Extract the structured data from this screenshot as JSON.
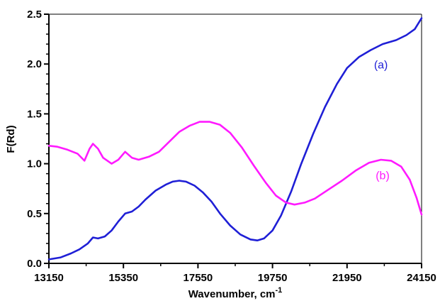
{
  "chart_data": {
    "type": "line",
    "xlabel": "Wavenumber, cm",
    "xlabel_superscript": "-1",
    "ylabel": "F(Rd)",
    "xlim": [
      13150,
      24150
    ],
    "ylim": [
      0.0,
      2.5
    ],
    "x_ticks": [
      13150,
      15350,
      17550,
      19750,
      21950,
      24150
    ],
    "x_tick_labels": [
      "13150",
      "15350",
      "17550",
      "19750",
      "21950",
      "24150"
    ],
    "y_ticks": [
      0.0,
      0.5,
      1.0,
      1.5,
      2.0,
      2.5
    ],
    "y_tick_labels": [
      "0.0",
      "0.5",
      "1.0",
      "1.5",
      "2.0",
      "2.5"
    ],
    "grid": false,
    "series": [
      {
        "name": "(a)",
        "color": "#1f1fd6",
        "label_pos": [
          22950,
          1.99
        ],
        "points": [
          [
            13150,
            0.04
          ],
          [
            13500,
            0.06
          ],
          [
            13800,
            0.1
          ],
          [
            14050,
            0.14
          ],
          [
            14300,
            0.2
          ],
          [
            14450,
            0.26
          ],
          [
            14600,
            0.25
          ],
          [
            14800,
            0.27
          ],
          [
            15000,
            0.33
          ],
          [
            15200,
            0.42
          ],
          [
            15400,
            0.5
          ],
          [
            15600,
            0.52
          ],
          [
            15800,
            0.57
          ],
          [
            16000,
            0.64
          ],
          [
            16300,
            0.73
          ],
          [
            16600,
            0.79
          ],
          [
            16800,
            0.82
          ],
          [
            17000,
            0.83
          ],
          [
            17200,
            0.82
          ],
          [
            17450,
            0.78
          ],
          [
            17700,
            0.71
          ],
          [
            17950,
            0.62
          ],
          [
            18200,
            0.5
          ],
          [
            18500,
            0.38
          ],
          [
            18800,
            0.29
          ],
          [
            19100,
            0.24
          ],
          [
            19300,
            0.23
          ],
          [
            19500,
            0.25
          ],
          [
            19750,
            0.33
          ],
          [
            20000,
            0.48
          ],
          [
            20300,
            0.72
          ],
          [
            20600,
            1.0
          ],
          [
            20950,
            1.3
          ],
          [
            21300,
            1.57
          ],
          [
            21650,
            1.8
          ],
          [
            21950,
            1.96
          ],
          [
            22300,
            2.07
          ],
          [
            22650,
            2.14
          ],
          [
            23000,
            2.2
          ],
          [
            23400,
            2.24
          ],
          [
            23700,
            2.29
          ],
          [
            23950,
            2.35
          ],
          [
            24150,
            2.46
          ]
        ]
      },
      {
        "name": "(b)",
        "color": "#ff1aff",
        "label_pos": [
          23000,
          0.88
        ],
        "points": [
          [
            13150,
            1.18
          ],
          [
            13400,
            1.17
          ],
          [
            13700,
            1.14
          ],
          [
            14000,
            1.1
          ],
          [
            14200,
            1.03
          ],
          [
            14350,
            1.15
          ],
          [
            14450,
            1.2
          ],
          [
            14600,
            1.15
          ],
          [
            14750,
            1.06
          ],
          [
            15000,
            1.0
          ],
          [
            15200,
            1.04
          ],
          [
            15400,
            1.12
          ],
          [
            15600,
            1.06
          ],
          [
            15800,
            1.04
          ],
          [
            16100,
            1.07
          ],
          [
            16400,
            1.12
          ],
          [
            16700,
            1.22
          ],
          [
            17000,
            1.32
          ],
          [
            17300,
            1.38
          ],
          [
            17600,
            1.42
          ],
          [
            17900,
            1.42
          ],
          [
            18200,
            1.39
          ],
          [
            18500,
            1.31
          ],
          [
            18850,
            1.16
          ],
          [
            19200,
            0.98
          ],
          [
            19550,
            0.81
          ],
          [
            19850,
            0.68
          ],
          [
            20150,
            0.61
          ],
          [
            20400,
            0.59
          ],
          [
            20700,
            0.61
          ],
          [
            21000,
            0.65
          ],
          [
            21400,
            0.74
          ],
          [
            21800,
            0.83
          ],
          [
            22200,
            0.93
          ],
          [
            22600,
            1.01
          ],
          [
            22950,
            1.04
          ],
          [
            23250,
            1.03
          ],
          [
            23550,
            0.97
          ],
          [
            23800,
            0.84
          ],
          [
            24000,
            0.66
          ],
          [
            24150,
            0.49
          ]
        ]
      }
    ]
  }
}
